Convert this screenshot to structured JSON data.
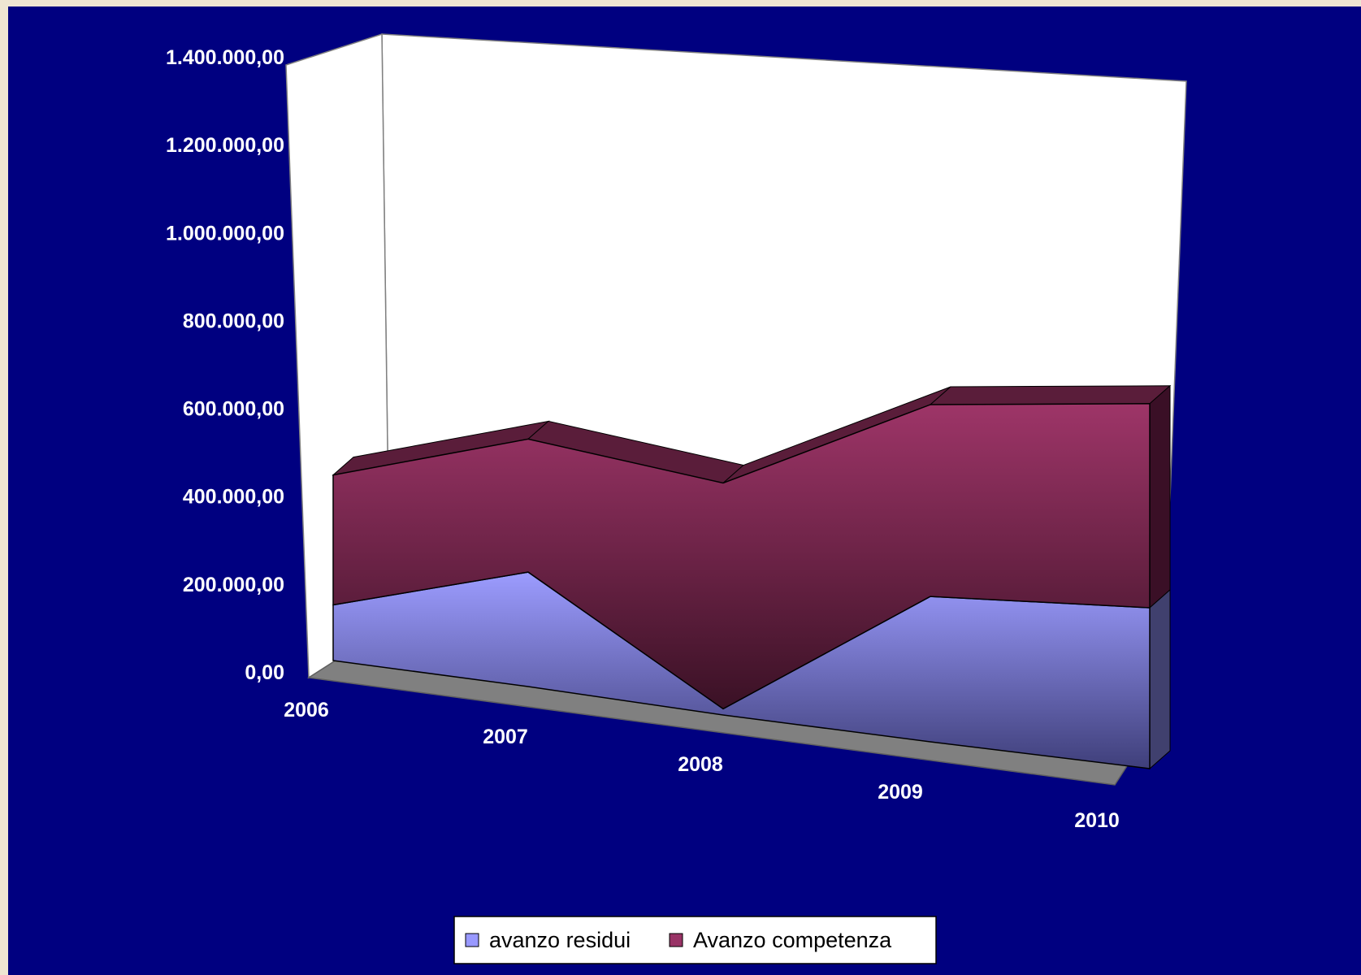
{
  "chart_data": {
    "type": "area",
    "categories": [
      "2006",
      "2007",
      "2008",
      "2009",
      "2010"
    ],
    "series": [
      {
        "name": "avanzo residui",
        "values": [
          180000,
          370000,
          20000,
          470000,
          520000
        ],
        "color": "#9999ff"
      },
      {
        "name": "Avanzo competenza",
        "values": [
          420000,
          430000,
          730000,
          620000,
          660000
        ],
        "color": "#993366"
      }
    ],
    "yticks": [
      "0,00",
      "200.000,00",
      "400.000,00",
      "600.000,00",
      "800.000,00",
      "1.000.000,00",
      "1.200.000,00",
      "1.400.000,00"
    ],
    "ylim": [
      0,
      1400000
    ],
    "stacked": true,
    "three_d": true,
    "legend_position": "bottom",
    "colors": {
      "background": "#000080",
      "walls": "#ffffff",
      "floor": "#808080",
      "text": "#ffffff"
    }
  }
}
